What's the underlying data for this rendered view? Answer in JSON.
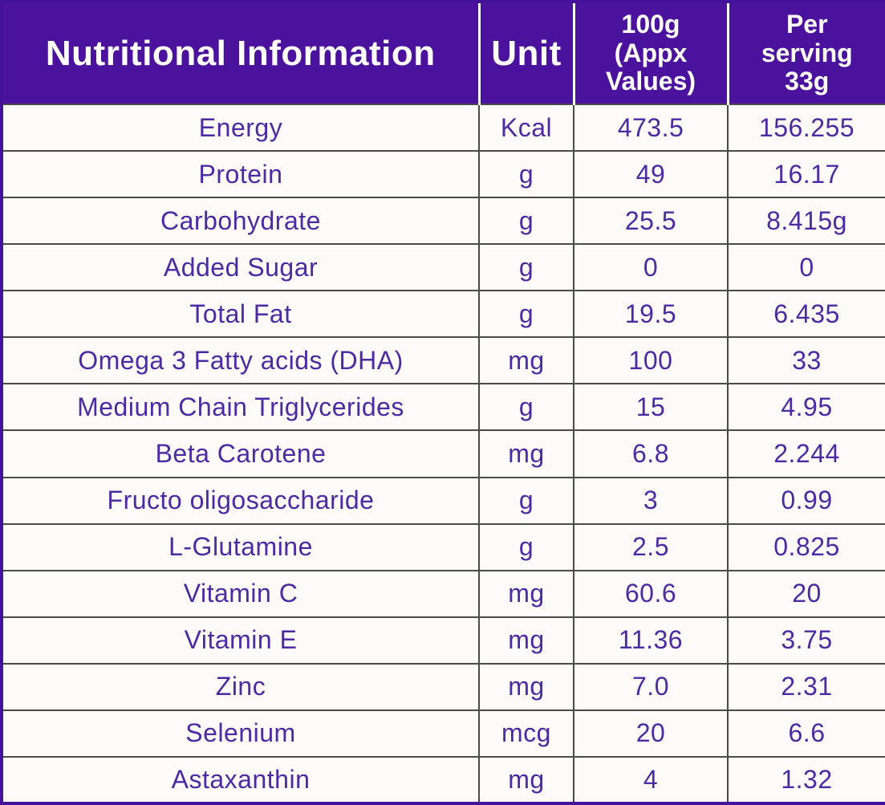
{
  "colors": {
    "header_bg": "#4b129e",
    "header_text": "#ffffff",
    "body_text": "#4c2aa3",
    "row_bg": "#fcfbf9",
    "grid_line": "#4a4a4a",
    "outer_border": "#45129b"
  },
  "table": {
    "headers": {
      "name": "Nutritional Information",
      "unit": "Unit",
      "per100g": "100g\n(Appx\nValues)",
      "perServing": "Per\nserving\n33g"
    },
    "rows": [
      {
        "name": "Energy",
        "unit": "Kcal",
        "per100g": "473.5",
        "perServing": "156.255"
      },
      {
        "name": "Protein",
        "unit": "g",
        "per100g": "49",
        "perServing": "16.17"
      },
      {
        "name": "Carbohydrate",
        "unit": "g",
        "per100g": "25.5",
        "perServing": "8.415g"
      },
      {
        "name": "Added Sugar",
        "unit": "g",
        "per100g": "0",
        "perServing": "0"
      },
      {
        "name": "Total Fat",
        "unit": "g",
        "per100g": "19.5",
        "perServing": "6.435"
      },
      {
        "name": "Omega 3 Fatty acids (DHA)",
        "unit": "mg",
        "per100g": "100",
        "perServing": "33"
      },
      {
        "name": "Medium Chain Triglycerides",
        "unit": "g",
        "per100g": "15",
        "perServing": "4.95"
      },
      {
        "name": "Beta Carotene",
        "unit": "mg",
        "per100g": "6.8",
        "perServing": "2.244"
      },
      {
        "name": "Fructo oligosaccharide",
        "unit": "g",
        "per100g": "3",
        "perServing": "0.99"
      },
      {
        "name": "L-Glutamine",
        "unit": "g",
        "per100g": "2.5",
        "perServing": "0.825"
      },
      {
        "name": "Vitamin C",
        "unit": "mg",
        "per100g": "60.6",
        "perServing": "20"
      },
      {
        "name": "Vitamin E",
        "unit": "mg",
        "per100g": "11.36",
        "perServing": "3.75"
      },
      {
        "name": "Zinc",
        "unit": "mg",
        "per100g": "7.0",
        "perServing": "2.31"
      },
      {
        "name": "Selenium",
        "unit": "mcg",
        "per100g": "20",
        "perServing": "6.6"
      },
      {
        "name": "Astaxanthin",
        "unit": "mg",
        "per100g": "4",
        "perServing": "1.32"
      }
    ]
  },
  "chart_data": {
    "type": "table",
    "title": "Nutritional Information",
    "columns": [
      "Nutritional Information",
      "Unit",
      "100g (Appx Values)",
      "Per serving 33g"
    ],
    "rows": [
      [
        "Energy",
        "Kcal",
        "473.5",
        "156.255"
      ],
      [
        "Protein",
        "g",
        "49",
        "16.17"
      ],
      [
        "Carbohydrate",
        "g",
        "25.5",
        "8.415g"
      ],
      [
        "Added Sugar",
        "g",
        "0",
        "0"
      ],
      [
        "Total Fat",
        "g",
        "19.5",
        "6.435"
      ],
      [
        "Omega 3 Fatty acids (DHA)",
        "mg",
        "100",
        "33"
      ],
      [
        "Medium Chain Triglycerides",
        "g",
        "15",
        "4.95"
      ],
      [
        "Beta Carotene",
        "mg",
        "6.8",
        "2.244"
      ],
      [
        "Fructo oligosaccharide",
        "g",
        "3",
        "0.99"
      ],
      [
        "L-Glutamine",
        "g",
        "2.5",
        "0.825"
      ],
      [
        "Vitamin C",
        "mg",
        "60.6",
        "20"
      ],
      [
        "Vitamin E",
        "mg",
        "11.36",
        "3.75"
      ],
      [
        "Zinc",
        "mg",
        "7.0",
        "2.31"
      ],
      [
        "Selenium",
        "mcg",
        "20",
        "6.6"
      ],
      [
        "Astaxanthin",
        "mg",
        "4",
        "1.32"
      ]
    ]
  }
}
